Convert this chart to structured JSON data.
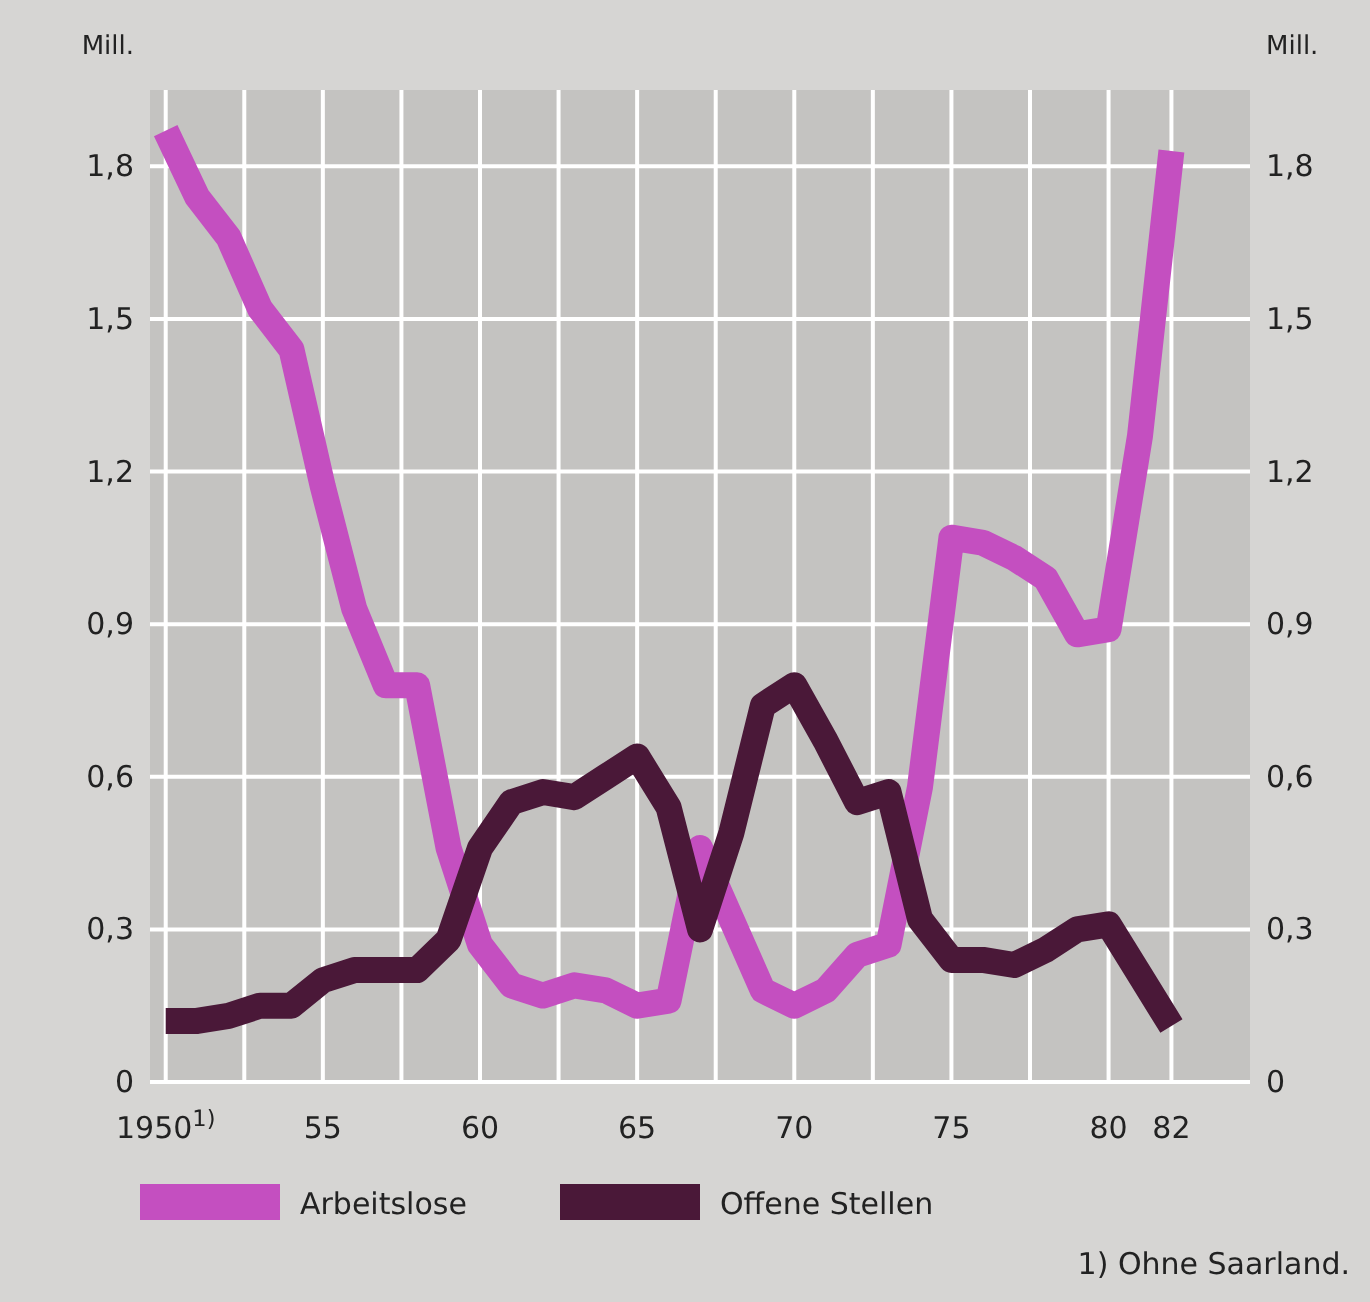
{
  "chart_data": {
    "type": "line",
    "ylabel": "Mill.",
    "y2label": "Mill.",
    "x": [
      1950,
      1951,
      1952,
      1953,
      1954,
      1955,
      1956,
      1957,
      1958,
      1959,
      1960,
      1961,
      1962,
      1963,
      1964,
      1965,
      1966,
      1967,
      1968,
      1969,
      1970,
      1971,
      1972,
      1973,
      1974,
      1975,
      1976,
      1977,
      1978,
      1979,
      1980,
      1981,
      1982
    ],
    "series": [
      {
        "name": "Arbeitslose",
        "color": "#c44fc0",
        "values": [
          1.87,
          1.74,
          1.66,
          1.52,
          1.44,
          1.17,
          0.93,
          0.78,
          0.78,
          0.46,
          0.27,
          0.19,
          0.17,
          0.19,
          0.18,
          0.15,
          0.16,
          0.46,
          0.32,
          0.18,
          0.15,
          0.18,
          0.25,
          0.27,
          0.58,
          1.07,
          1.06,
          1.03,
          0.99,
          0.88,
          0.89,
          1.27,
          1.83
        ]
      },
      {
        "name": "Offene Stellen",
        "color": "#4a1838",
        "values": [
          0.12,
          0.12,
          0.13,
          0.15,
          0.15,
          0.2,
          0.22,
          0.22,
          0.22,
          0.28,
          0.46,
          0.55,
          0.57,
          0.56,
          0.6,
          0.64,
          0.54,
          0.3,
          0.49,
          0.74,
          0.78,
          0.67,
          0.55,
          0.57,
          0.32,
          0.24,
          0.24,
          0.23,
          0.26,
          0.3,
          0.31,
          0.21,
          0.11
        ]
      }
    ],
    "xlim": [
      1949.5,
      1984.5
    ],
    "xticks": [
      {
        "value": 1950,
        "label": "1950$^{1)}$"
      },
      {
        "value": 1952.5,
        "label": null
      },
      {
        "value": 1955,
        "label": "55"
      },
      {
        "value": 1957.5,
        "label": null
      },
      {
        "value": 1960,
        "label": "60"
      },
      {
        "value": 1962.5,
        "label": null
      },
      {
        "value": 1965,
        "label": "65"
      },
      {
        "value": 1967.5,
        "label": null
      },
      {
        "value": 1970,
        "label": "70"
      },
      {
        "value": 1972.5,
        "label": null
      },
      {
        "value": 1975,
        "label": "75"
      },
      {
        "value": 1977.5,
        "label": null
      },
      {
        "value": 1980,
        "label": "80"
      },
      {
        "value": 1982,
        "label": "82"
      }
    ],
    "ylim": [
      0,
      1.95
    ],
    "yticks": [
      0,
      {
        "value": 0.3,
        "label": "0,3"
      },
      {
        "value": 0.6,
        "label": "0,6"
      },
      {
        "value": 0.9,
        "label": "0,9"
      },
      {
        "value": 1.2,
        "label": "1,2"
      },
      {
        "value": 1.5,
        "label": "1,5"
      },
      {
        "value": 1.8,
        "label": "1,8"
      }
    ],
    "y2lim": [
      0,
      1.95
    ],
    "y2ticks": [
      0,
      {
        "value": 0.3,
        "label": "0,3"
      },
      {
        "value": 0.6,
        "label": "0,6"
      },
      {
        "value": 0.9,
        "label": "0,9"
      },
      {
        "value": 1.2,
        "label": "1,2"
      },
      {
        "value": 1.5,
        "label": "1,5"
      },
      {
        "value": 1.8,
        "label": "1,8"
      }
    ],
    "grid": true,
    "legend": "bottom",
    "marker": "none",
    "line_style": "solid",
    "annotations": [
      "1) Ohne Saarland."
    ]
  }
}
